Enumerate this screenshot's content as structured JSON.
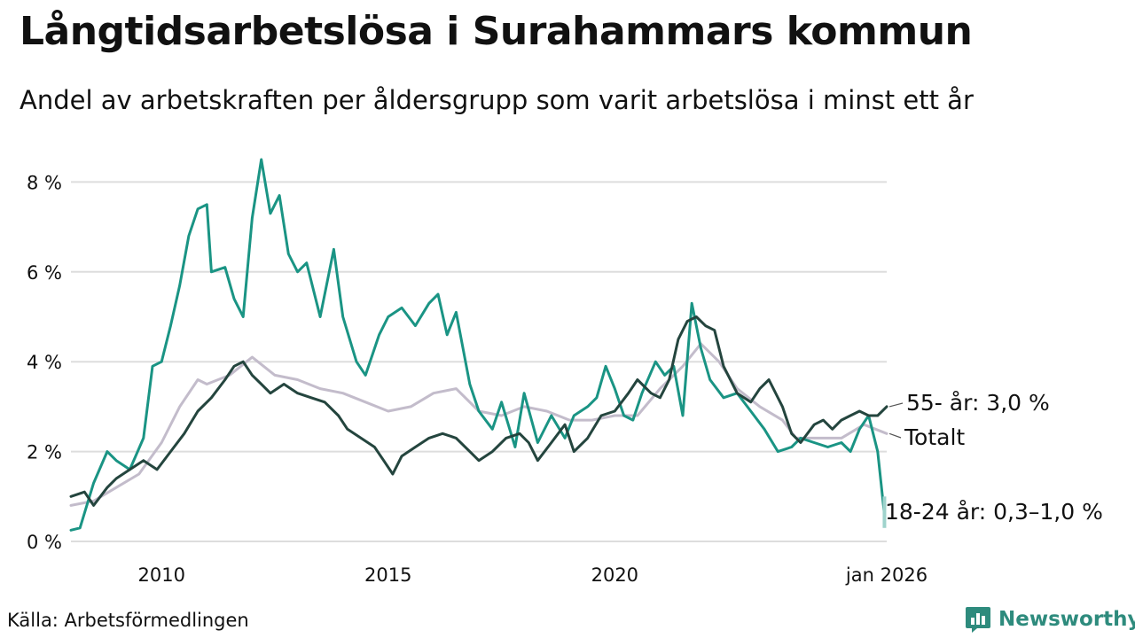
{
  "header": {
    "title": "Långtidsarbetslösa i Surahammars kommun",
    "subtitle": "Andel av arbetskraften per åldersgrupp som varit arbetslösa i minst ett år"
  },
  "footer": {
    "source": "Källa: Arbetsförmedlingen",
    "brand": "Newsworthy"
  },
  "colors": {
    "youth": "#1a9484",
    "youth_light": "#9fd3cc",
    "senior": "#24453e",
    "total": "#c3bccb",
    "grid": "#dddddd",
    "brand": "#2e8b7d"
  },
  "chart_data": {
    "type": "line",
    "title": "Långtidsarbetslösa i Surahammars kommun",
    "xlabel": "",
    "ylabel": "",
    "xlim": [
      2008.0,
      2026.0
    ],
    "ylim": [
      0,
      8.5
    ],
    "grid": true,
    "legend": "direct labels at line ends (right)",
    "x_ticks": [
      {
        "value": 2010,
        "label": "2010"
      },
      {
        "value": 2015,
        "label": "2015"
      },
      {
        "value": 2020,
        "label": "2020"
      },
      {
        "value": 2026,
        "label": "jan 2026"
      }
    ],
    "y_ticks": [
      {
        "value": 0,
        "label": "0 %"
      },
      {
        "value": 2,
        "label": "2 %"
      },
      {
        "value": 4,
        "label": "4 %"
      },
      {
        "value": 6,
        "label": "6 %"
      },
      {
        "value": 8,
        "label": "8 %"
      }
    ],
    "series": [
      {
        "name": "Totalt",
        "label": "Totalt",
        "color": "#c3bccb",
        "points": [
          [
            2008.0,
            0.8
          ],
          [
            2008.5,
            0.9
          ],
          [
            2009.0,
            1.2
          ],
          [
            2009.5,
            1.5
          ],
          [
            2010.0,
            2.2
          ],
          [
            2010.4,
            3.0
          ],
          [
            2010.8,
            3.6
          ],
          [
            2011.0,
            3.5
          ],
          [
            2011.5,
            3.7
          ],
          [
            2012.0,
            4.1
          ],
          [
            2012.5,
            3.7
          ],
          [
            2013.0,
            3.6
          ],
          [
            2013.5,
            3.4
          ],
          [
            2014.0,
            3.3
          ],
          [
            2014.5,
            3.1
          ],
          [
            2015.0,
            2.9
          ],
          [
            2015.5,
            3.0
          ],
          [
            2016.0,
            3.3
          ],
          [
            2016.5,
            3.4
          ],
          [
            2017.0,
            2.9
          ],
          [
            2017.5,
            2.8
          ],
          [
            2018.0,
            3.0
          ],
          [
            2018.5,
            2.9
          ],
          [
            2019.0,
            2.7
          ],
          [
            2019.5,
            2.7
          ],
          [
            2020.0,
            2.8
          ],
          [
            2020.5,
            2.8
          ],
          [
            2021.0,
            3.4
          ],
          [
            2021.5,
            3.9
          ],
          [
            2021.9,
            4.4
          ],
          [
            2022.3,
            4.0
          ],
          [
            2022.7,
            3.4
          ],
          [
            2023.2,
            3.0
          ],
          [
            2023.7,
            2.7
          ],
          [
            2024.0,
            2.3
          ],
          [
            2024.5,
            2.3
          ],
          [
            2025.0,
            2.3
          ],
          [
            2025.5,
            2.6
          ],
          [
            2026.0,
            2.4
          ]
        ]
      },
      {
        "name": "18-24 år",
        "label": "18-24 år: 0,3–1,0 %",
        "color": "#1a9484",
        "points": [
          [
            2008.0,
            0.25
          ],
          [
            2008.2,
            0.3
          ],
          [
            2008.5,
            1.3
          ],
          [
            2008.8,
            2.0
          ],
          [
            2009.0,
            1.8
          ],
          [
            2009.3,
            1.6
          ],
          [
            2009.6,
            2.3
          ],
          [
            2009.8,
            3.9
          ],
          [
            2010.0,
            4.0
          ],
          [
            2010.2,
            4.8
          ],
          [
            2010.4,
            5.7
          ],
          [
            2010.6,
            6.8
          ],
          [
            2010.8,
            7.4
          ],
          [
            2011.0,
            7.5
          ],
          [
            2011.1,
            6.0
          ],
          [
            2011.4,
            6.1
          ],
          [
            2011.6,
            5.4
          ],
          [
            2011.8,
            5.0
          ],
          [
            2012.0,
            7.2
          ],
          [
            2012.2,
            8.5
          ],
          [
            2012.4,
            7.3
          ],
          [
            2012.6,
            7.7
          ],
          [
            2012.8,
            6.4
          ],
          [
            2013.0,
            6.0
          ],
          [
            2013.2,
            6.2
          ],
          [
            2013.5,
            5.0
          ],
          [
            2013.8,
            6.5
          ],
          [
            2014.0,
            5.0
          ],
          [
            2014.3,
            4.0
          ],
          [
            2014.5,
            3.7
          ],
          [
            2014.8,
            4.6
          ],
          [
            2015.0,
            5.0
          ],
          [
            2015.3,
            5.2
          ],
          [
            2015.6,
            4.8
          ],
          [
            2015.9,
            5.3
          ],
          [
            2016.1,
            5.5
          ],
          [
            2016.3,
            4.6
          ],
          [
            2016.5,
            5.1
          ],
          [
            2016.8,
            3.5
          ],
          [
            2017.0,
            2.9
          ],
          [
            2017.3,
            2.5
          ],
          [
            2017.5,
            3.1
          ],
          [
            2017.8,
            2.1
          ],
          [
            2018.0,
            3.3
          ],
          [
            2018.3,
            2.2
          ],
          [
            2018.6,
            2.8
          ],
          [
            2018.9,
            2.3
          ],
          [
            2019.1,
            2.8
          ],
          [
            2019.4,
            3.0
          ],
          [
            2019.6,
            3.2
          ],
          [
            2019.8,
            3.9
          ],
          [
            2020.0,
            3.4
          ],
          [
            2020.2,
            2.8
          ],
          [
            2020.4,
            2.7
          ],
          [
            2020.6,
            3.3
          ],
          [
            2020.9,
            4.0
          ],
          [
            2021.1,
            3.7
          ],
          [
            2021.3,
            3.9
          ],
          [
            2021.5,
            2.8
          ],
          [
            2021.7,
            5.3
          ],
          [
            2021.9,
            4.3
          ],
          [
            2022.1,
            3.6
          ],
          [
            2022.4,
            3.2
          ],
          [
            2022.7,
            3.3
          ],
          [
            2023.0,
            2.9
          ],
          [
            2023.3,
            2.5
          ],
          [
            2023.6,
            2.0
          ],
          [
            2023.9,
            2.1
          ],
          [
            2024.1,
            2.3
          ],
          [
            2024.4,
            2.2
          ],
          [
            2024.7,
            2.1
          ],
          [
            2025.0,
            2.2
          ],
          [
            2025.2,
            2.0
          ],
          [
            2025.4,
            2.5
          ],
          [
            2025.6,
            2.8
          ],
          [
            2025.8,
            2.0
          ],
          [
            2025.95,
            0.6
          ]
        ]
      },
      {
        "name": "55- år",
        "label": "55- år: 3,0 %",
        "color": "#24453e",
        "points": [
          [
            2008.0,
            1.0
          ],
          [
            2008.3,
            1.1
          ],
          [
            2008.5,
            0.8
          ],
          [
            2008.8,
            1.2
          ],
          [
            2009.0,
            1.4
          ],
          [
            2009.3,
            1.6
          ],
          [
            2009.6,
            1.8
          ],
          [
            2009.9,
            1.6
          ],
          [
            2010.2,
            2.0
          ],
          [
            2010.5,
            2.4
          ],
          [
            2010.8,
            2.9
          ],
          [
            2011.1,
            3.2
          ],
          [
            2011.4,
            3.6
          ],
          [
            2011.6,
            3.9
          ],
          [
            2011.8,
            4.0
          ],
          [
            2012.0,
            3.7
          ],
          [
            2012.2,
            3.5
          ],
          [
            2012.4,
            3.3
          ],
          [
            2012.7,
            3.5
          ],
          [
            2013.0,
            3.3
          ],
          [
            2013.3,
            3.2
          ],
          [
            2013.6,
            3.1
          ],
          [
            2013.9,
            2.8
          ],
          [
            2014.1,
            2.5
          ],
          [
            2014.4,
            2.3
          ],
          [
            2014.7,
            2.1
          ],
          [
            2014.9,
            1.8
          ],
          [
            2015.1,
            1.5
          ],
          [
            2015.3,
            1.9
          ],
          [
            2015.6,
            2.1
          ],
          [
            2015.9,
            2.3
          ],
          [
            2016.2,
            2.4
          ],
          [
            2016.5,
            2.3
          ],
          [
            2016.8,
            2.0
          ],
          [
            2017.0,
            1.8
          ],
          [
            2017.3,
            2.0
          ],
          [
            2017.6,
            2.3
          ],
          [
            2017.9,
            2.4
          ],
          [
            2018.1,
            2.2
          ],
          [
            2018.3,
            1.8
          ],
          [
            2018.6,
            2.2
          ],
          [
            2018.9,
            2.6
          ],
          [
            2019.1,
            2.0
          ],
          [
            2019.4,
            2.3
          ],
          [
            2019.7,
            2.8
          ],
          [
            2020.0,
            2.9
          ],
          [
            2020.3,
            3.3
          ],
          [
            2020.5,
            3.6
          ],
          [
            2020.8,
            3.3
          ],
          [
            2021.0,
            3.2
          ],
          [
            2021.2,
            3.6
          ],
          [
            2021.4,
            4.5
          ],
          [
            2021.6,
            4.9
          ],
          [
            2021.8,
            5.0
          ],
          [
            2022.0,
            4.8
          ],
          [
            2022.2,
            4.7
          ],
          [
            2022.4,
            3.9
          ],
          [
            2022.7,
            3.3
          ],
          [
            2023.0,
            3.1
          ],
          [
            2023.2,
            3.4
          ],
          [
            2023.4,
            3.6
          ],
          [
            2023.7,
            3.0
          ],
          [
            2023.9,
            2.4
          ],
          [
            2024.1,
            2.2
          ],
          [
            2024.4,
            2.6
          ],
          [
            2024.6,
            2.7
          ],
          [
            2024.8,
            2.5
          ],
          [
            2025.0,
            2.7
          ],
          [
            2025.2,
            2.8
          ],
          [
            2025.4,
            2.9
          ],
          [
            2025.6,
            2.8
          ],
          [
            2025.8,
            2.8
          ],
          [
            2026.0,
            3.0
          ]
        ]
      }
    ]
  }
}
